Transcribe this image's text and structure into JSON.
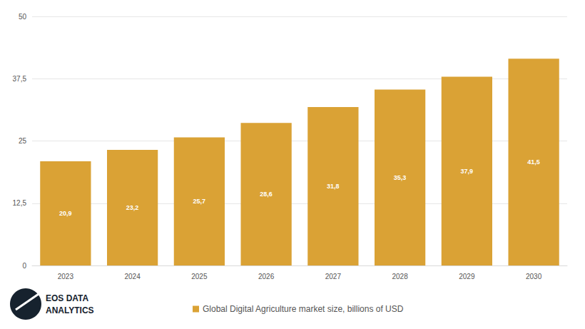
{
  "chart_data": {
    "type": "bar",
    "categories": [
      "2023",
      "2024",
      "2025",
      "2026",
      "2027",
      "2028",
      "2029",
      "2030"
    ],
    "series": [
      {
        "name": "Global Digital Agriculture market size, billions of USD",
        "color": "#daa235",
        "values": [
          20.9,
          23.2,
          25.7,
          28.6,
          31.8,
          35.3,
          37.9,
          41.5
        ],
        "value_labels": [
          "20,9",
          "23,2",
          "25,7",
          "28,6",
          "31,8",
          "35,3",
          "37,9",
          "41,5"
        ]
      }
    ],
    "ylim": [
      0,
      50
    ],
    "yticks": [
      0,
      {
        "value": 12.5,
        "label": "12,5"
      },
      25,
      {
        "value": 37.5,
        "label": "37,5"
      },
      50
    ],
    "grid": true,
    "data_labels": true,
    "legend": "bottom",
    "annotations": [
      "EOS DATA",
      "ANALYTICS"
    ]
  }
}
